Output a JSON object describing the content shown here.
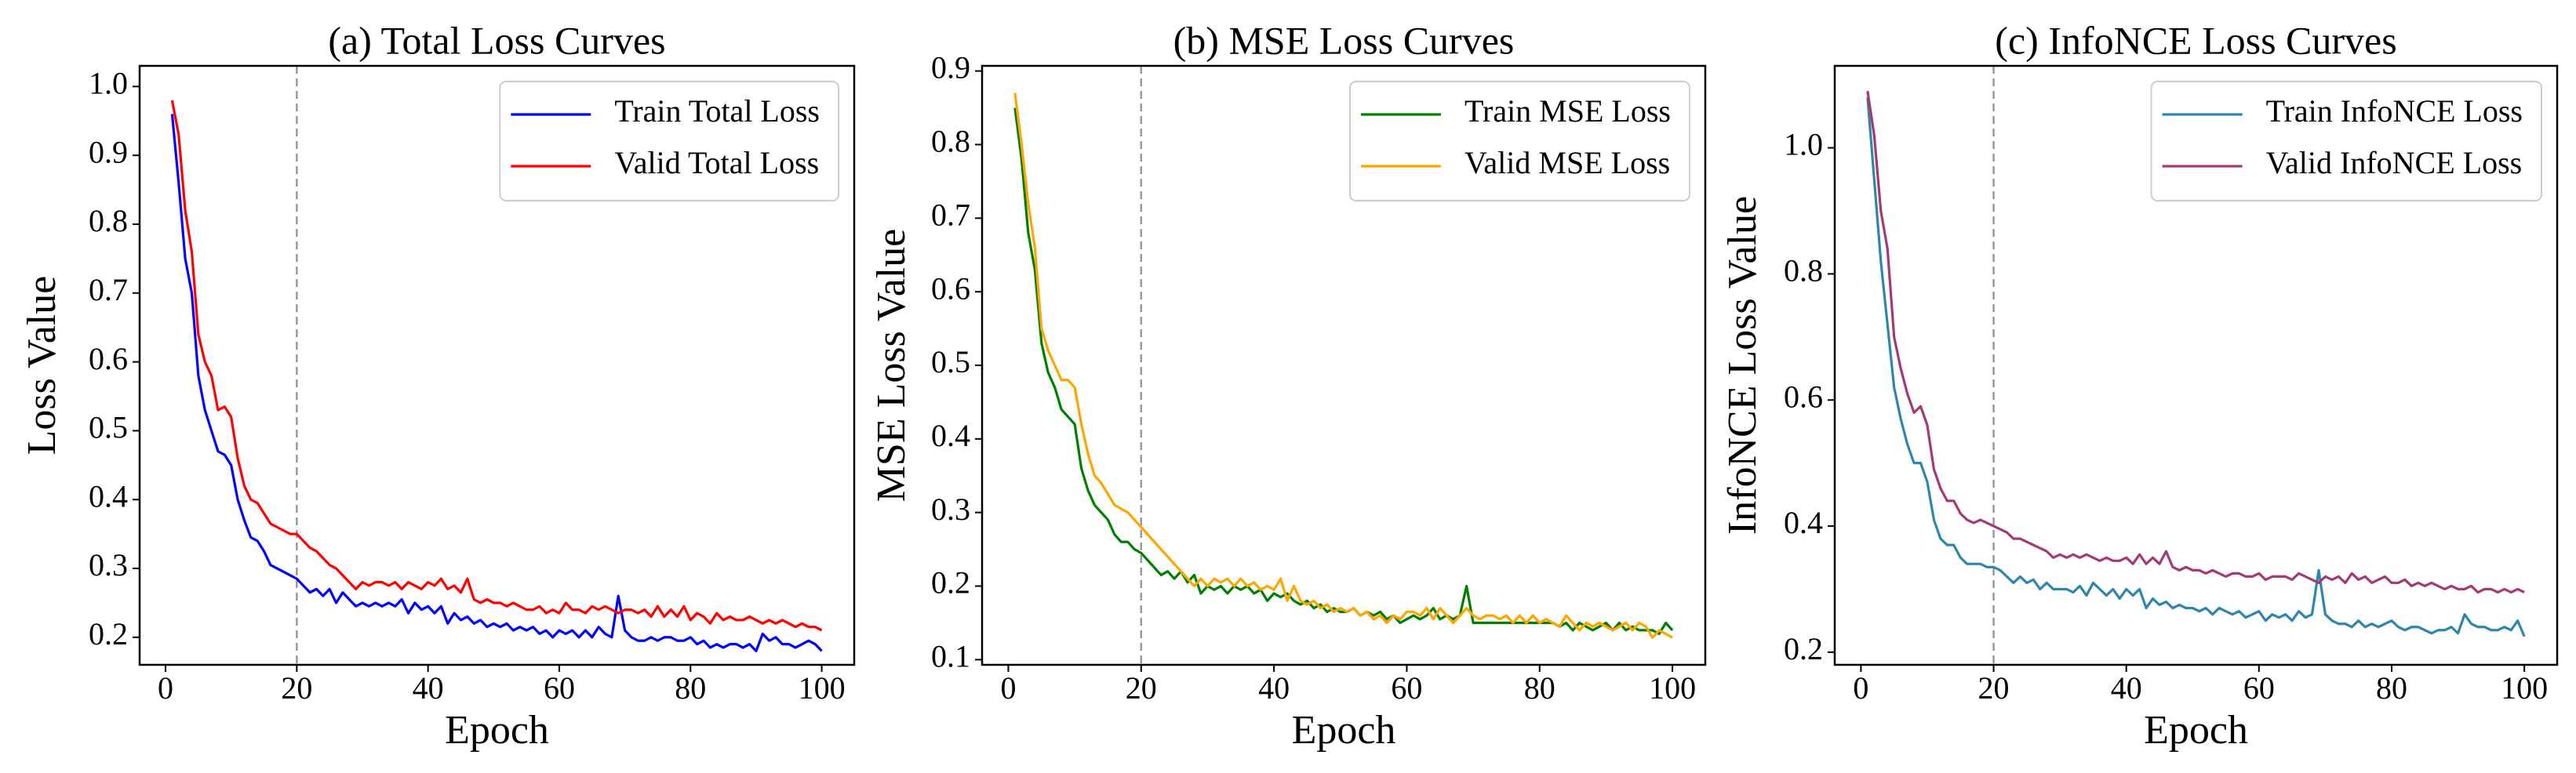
{
  "chart_data": [
    {
      "type": "line",
      "title": "(a) Total Loss Curves",
      "x_label": "Epoch",
      "y_label": "Loss Value",
      "x": [
        1,
        2,
        3,
        4,
        5,
        6,
        7,
        8,
        9,
        10,
        11,
        12,
        13,
        14,
        15,
        16,
        17,
        18,
        19,
        20,
        21,
        22,
        23,
        24,
        25,
        26,
        27,
        28,
        29,
        30,
        31,
        32,
        33,
        34,
        35,
        36,
        37,
        38,
        39,
        40,
        41,
        42,
        43,
        44,
        45,
        46,
        47,
        48,
        49,
        50,
        51,
        52,
        53,
        54,
        55,
        56,
        57,
        58,
        59,
        60,
        61,
        62,
        63,
        64,
        65,
        66,
        67,
        68,
        69,
        70,
        71,
        72,
        73,
        74,
        75,
        76,
        77,
        78,
        79,
        80,
        81,
        82,
        83,
        84,
        85,
        86,
        87,
        88,
        89,
        90,
        91,
        92,
        93,
        94,
        95,
        96,
        97,
        98,
        99,
        100
      ],
      "series": [
        {
          "name": "Train Total Loss",
          "color": "#0000ff",
          "values": [
            0.96,
            0.86,
            0.75,
            0.7,
            0.58,
            0.53,
            0.5,
            0.47,
            0.465,
            0.45,
            0.4,
            0.37,
            0.345,
            0.34,
            0.325,
            0.305,
            0.3,
            0.295,
            0.29,
            0.285,
            0.275,
            0.265,
            0.27,
            0.26,
            0.27,
            0.25,
            0.265,
            0.255,
            0.245,
            0.25,
            0.245,
            0.25,
            0.245,
            0.25,
            0.245,
            0.255,
            0.235,
            0.25,
            0.24,
            0.245,
            0.235,
            0.245,
            0.22,
            0.235,
            0.225,
            0.23,
            0.22,
            0.225,
            0.215,
            0.22,
            0.215,
            0.22,
            0.21,
            0.215,
            0.21,
            0.215,
            0.205,
            0.21,
            0.2,
            0.21,
            0.205,
            0.21,
            0.2,
            0.21,
            0.2,
            0.215,
            0.205,
            0.2,
            0.26,
            0.21,
            0.2,
            0.195,
            0.195,
            0.2,
            0.195,
            0.2,
            0.2,
            0.195,
            0.195,
            0.2,
            0.19,
            0.195,
            0.185,
            0.19,
            0.185,
            0.19,
            0.19,
            0.185,
            0.19,
            0.18,
            0.205,
            0.195,
            0.2,
            0.19,
            0.19,
            0.185,
            0.19,
            0.195,
            0.19,
            0.18
          ]
        },
        {
          "name": "Valid Total Loss",
          "color": "#ff0000",
          "values": [
            0.98,
            0.93,
            0.82,
            0.76,
            0.64,
            0.6,
            0.58,
            0.53,
            0.535,
            0.52,
            0.46,
            0.42,
            0.4,
            0.395,
            0.38,
            0.365,
            0.36,
            0.355,
            0.35,
            0.35,
            0.34,
            0.33,
            0.325,
            0.315,
            0.305,
            0.3,
            0.29,
            0.28,
            0.27,
            0.28,
            0.275,
            0.28,
            0.28,
            0.275,
            0.28,
            0.27,
            0.28,
            0.275,
            0.27,
            0.28,
            0.275,
            0.285,
            0.27,
            0.275,
            0.265,
            0.285,
            0.255,
            0.25,
            0.255,
            0.25,
            0.25,
            0.245,
            0.25,
            0.245,
            0.24,
            0.24,
            0.245,
            0.235,
            0.24,
            0.235,
            0.25,
            0.24,
            0.24,
            0.235,
            0.245,
            0.24,
            0.245,
            0.24,
            0.235,
            0.24,
            0.24,
            0.235,
            0.24,
            0.23,
            0.245,
            0.23,
            0.24,
            0.23,
            0.245,
            0.225,
            0.235,
            0.23,
            0.22,
            0.235,
            0.225,
            0.23,
            0.225,
            0.225,
            0.23,
            0.225,
            0.22,
            0.225,
            0.22,
            0.225,
            0.22,
            0.215,
            0.22,
            0.215,
            0.215,
            0.21
          ]
        }
      ],
      "xlim": [
        -3.95,
        104.95
      ],
      "xticks": [
        0,
        20,
        40,
        60,
        80,
        100
      ],
      "ylim": [
        0.16,
        1.03
      ],
      "yticks": [
        0.2,
        0.3,
        0.4,
        0.5,
        0.6,
        0.7,
        0.8,
        0.9,
        {
          "value": 1.0,
          "label": "1.0"
        }
      ],
      "vline": 20,
      "legend": "upper right"
    },
    {
      "type": "line",
      "title": "(b) MSE Loss Curves",
      "x_label": "Epoch",
      "y_label": "MSE Loss Value",
      "x": [
        1,
        2,
        3,
        4,
        5,
        6,
        7,
        8,
        9,
        10,
        11,
        12,
        13,
        14,
        15,
        16,
        17,
        18,
        19,
        20,
        21,
        22,
        23,
        24,
        25,
        26,
        27,
        28,
        29,
        30,
        31,
        32,
        33,
        34,
        35,
        36,
        37,
        38,
        39,
        40,
        41,
        42,
        43,
        44,
        45,
        46,
        47,
        48,
        49,
        50,
        51,
        52,
        53,
        54,
        55,
        56,
        57,
        58,
        59,
        60,
        61,
        62,
        63,
        64,
        65,
        66,
        67,
        68,
        69,
        70,
        71,
        72,
        73,
        74,
        75,
        76,
        77,
        78,
        79,
        80,
        81,
        82,
        83,
        84,
        85,
        86,
        87,
        88,
        89,
        90,
        91,
        92,
        93,
        94,
        95,
        96,
        97,
        98,
        99,
        100
      ],
      "series": [
        {
          "name": "Train MSE Loss",
          "color": "#008000",
          "values": [
            0.85,
            0.78,
            0.68,
            0.63,
            0.53,
            0.49,
            0.47,
            0.44,
            0.43,
            0.42,
            0.36,
            0.33,
            0.31,
            0.3,
            0.29,
            0.27,
            0.26,
            0.26,
            0.25,
            0.245,
            0.235,
            0.225,
            0.215,
            0.22,
            0.21,
            0.22,
            0.205,
            0.215,
            0.19,
            0.2,
            0.195,
            0.2,
            0.19,
            0.2,
            0.195,
            0.2,
            0.19,
            0.195,
            0.18,
            0.19,
            0.185,
            0.19,
            0.18,
            0.175,
            0.18,
            0.17,
            0.175,
            0.165,
            0.17,
            0.165,
            0.165,
            0.17,
            0.16,
            0.165,
            0.16,
            0.165,
            0.155,
            0.16,
            0.15,
            0.155,
            0.16,
            0.155,
            0.16,
            0.17,
            0.155,
            0.16,
            0.155,
            0.16,
            0.2,
            0.15,
            0.15,
            0.15,
            0.15,
            0.15,
            0.15,
            0.15,
            0.15,
            0.15,
            0.15,
            0.15,
            0.15,
            0.15,
            0.145,
            0.15,
            0.14,
            0.15,
            0.145,
            0.14,
            0.145,
            0.15,
            0.14,
            0.15,
            0.14,
            0.145,
            0.14,
            0.14,
            0.14,
            0.135,
            0.15,
            0.14
          ]
        },
        {
          "name": "Valid MSE Loss",
          "color": "#ffa500",
          "values": [
            0.87,
            0.8,
            0.72,
            0.66,
            0.55,
            0.52,
            0.5,
            0.48,
            0.48,
            0.47,
            0.42,
            0.38,
            0.35,
            0.34,
            0.325,
            0.31,
            0.305,
            0.3,
            0.29,
            0.28,
            0.27,
            0.26,
            0.25,
            0.24,
            0.23,
            0.22,
            0.21,
            0.2,
            0.21,
            0.2,
            0.21,
            0.205,
            0.21,
            0.2,
            0.21,
            0.2,
            0.205,
            0.195,
            0.2,
            0.195,
            0.21,
            0.18,
            0.2,
            0.18,
            0.175,
            0.18,
            0.17,
            0.175,
            0.165,
            0.17,
            0.165,
            0.17,
            0.16,
            0.165,
            0.155,
            0.16,
            0.15,
            0.16,
            0.155,
            0.165,
            0.165,
            0.16,
            0.17,
            0.155,
            0.17,
            0.16,
            0.15,
            0.16,
            0.17,
            0.16,
            0.155,
            0.16,
            0.16,
            0.155,
            0.16,
            0.15,
            0.16,
            0.15,
            0.16,
            0.15,
            0.155,
            0.15,
            0.145,
            0.16,
            0.15,
            0.14,
            0.15,
            0.145,
            0.15,
            0.145,
            0.14,
            0.145,
            0.15,
            0.14,
            0.15,
            0.145,
            0.13,
            0.14,
            0.135,
            0.13
          ]
        }
      ],
      "xlim": [
        -3.95,
        104.95
      ],
      "xticks": [
        0,
        20,
        40,
        60,
        80,
        100
      ],
      "ylim": [
        0.093,
        0.907
      ],
      "yticks": [
        0.1,
        0.2,
        0.3,
        0.4,
        0.5,
        0.6,
        0.7,
        0.8,
        0.9
      ],
      "vline": 20,
      "legend": "upper right"
    },
    {
      "type": "line",
      "title": "(c) InfoNCE Loss Curves",
      "x_label": "Epoch",
      "y_label": "InfoNCE Loss Value",
      "x": [
        1,
        2,
        3,
        4,
        5,
        6,
        7,
        8,
        9,
        10,
        11,
        12,
        13,
        14,
        15,
        16,
        17,
        18,
        19,
        20,
        21,
        22,
        23,
        24,
        25,
        26,
        27,
        28,
        29,
        30,
        31,
        32,
        33,
        34,
        35,
        36,
        37,
        38,
        39,
        40,
        41,
        42,
        43,
        44,
        45,
        46,
        47,
        48,
        49,
        50,
        51,
        52,
        53,
        54,
        55,
        56,
        57,
        58,
        59,
        60,
        61,
        62,
        63,
        64,
        65,
        66,
        67,
        68,
        69,
        70,
        71,
        72,
        73,
        74,
        75,
        76,
        77,
        78,
        79,
        80,
        81,
        82,
        83,
        84,
        85,
        86,
        87,
        88,
        89,
        90,
        91,
        92,
        93,
        94,
        95,
        96,
        97,
        98,
        99,
        100
      ],
      "series": [
        {
          "name": "Train InfoNCE Loss",
          "color": "#2e86ab",
          "values": [
            1.08,
            0.95,
            0.82,
            0.72,
            0.62,
            0.57,
            0.53,
            0.5,
            0.5,
            0.47,
            0.41,
            0.38,
            0.37,
            0.37,
            0.35,
            0.34,
            0.34,
            0.34,
            0.335,
            0.335,
            0.33,
            0.32,
            0.31,
            0.32,
            0.31,
            0.315,
            0.3,
            0.31,
            0.3,
            0.3,
            0.3,
            0.295,
            0.305,
            0.29,
            0.31,
            0.3,
            0.29,
            0.3,
            0.285,
            0.3,
            0.29,
            0.3,
            0.27,
            0.285,
            0.275,
            0.28,
            0.27,
            0.275,
            0.27,
            0.27,
            0.265,
            0.27,
            0.26,
            0.27,
            0.265,
            0.26,
            0.265,
            0.255,
            0.26,
            0.265,
            0.25,
            0.26,
            0.255,
            0.26,
            0.25,
            0.265,
            0.255,
            0.26,
            0.33,
            0.26,
            0.25,
            0.245,
            0.245,
            0.24,
            0.25,
            0.24,
            0.245,
            0.24,
            0.245,
            0.25,
            0.24,
            0.235,
            0.24,
            0.24,
            0.235,
            0.23,
            0.235,
            0.235,
            0.24,
            0.23,
            0.26,
            0.245,
            0.24,
            0.24,
            0.235,
            0.235,
            0.24,
            0.235,
            0.25,
            0.225
          ]
        },
        {
          "name": "Valid InfoNCE Loss",
          "color": "#a23b72",
          "values": [
            1.09,
            1.02,
            0.9,
            0.84,
            0.7,
            0.65,
            0.61,
            0.58,
            0.59,
            0.56,
            0.49,
            0.46,
            0.44,
            0.44,
            0.42,
            0.41,
            0.405,
            0.41,
            0.405,
            0.4,
            0.395,
            0.39,
            0.38,
            0.38,
            0.375,
            0.37,
            0.365,
            0.36,
            0.35,
            0.355,
            0.35,
            0.355,
            0.35,
            0.355,
            0.35,
            0.345,
            0.35,
            0.345,
            0.345,
            0.35,
            0.34,
            0.355,
            0.34,
            0.35,
            0.34,
            0.36,
            0.335,
            0.33,
            0.335,
            0.33,
            0.33,
            0.325,
            0.33,
            0.325,
            0.32,
            0.325,
            0.325,
            0.32,
            0.32,
            0.325,
            0.315,
            0.32,
            0.32,
            0.32,
            0.315,
            0.325,
            0.32,
            0.315,
            0.31,
            0.32,
            0.315,
            0.32,
            0.31,
            0.325,
            0.315,
            0.32,
            0.31,
            0.315,
            0.32,
            0.31,
            0.31,
            0.315,
            0.305,
            0.31,
            0.305,
            0.31,
            0.305,
            0.3,
            0.305,
            0.3,
            0.3,
            0.305,
            0.295,
            0.3,
            0.3,
            0.295,
            0.3,
            0.295,
            0.3,
            0.295
          ]
        }
      ],
      "xlim": [
        -3.95,
        104.95
      ],
      "xticks": [
        0,
        20,
        40,
        60,
        80,
        100
      ],
      "ylim": [
        0.18,
        1.13
      ],
      "yticks": [
        0.2,
        0.4,
        0.6,
        0.8,
        {
          "value": 1.0,
          "label": "1.0"
        }
      ],
      "vline": 20,
      "legend": "upper right"
    }
  ]
}
